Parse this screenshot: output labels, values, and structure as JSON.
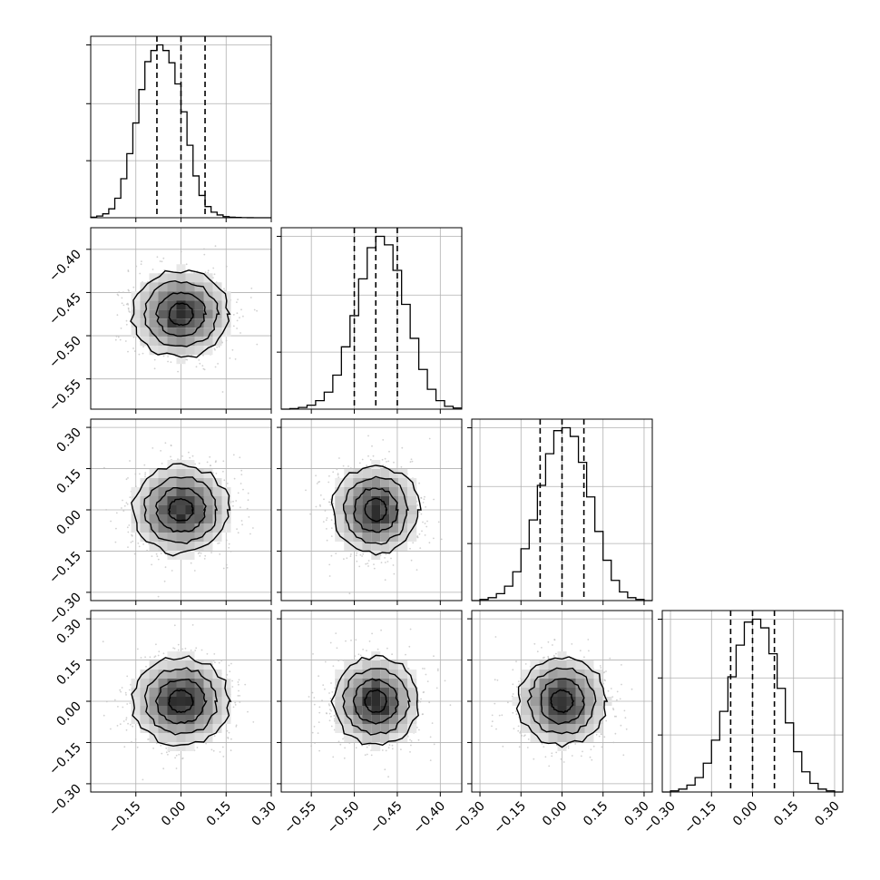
{
  "chart_data": {
    "type": "corner",
    "parameters": 4,
    "title": "",
    "panels": [
      {
        "id": "hist-0",
        "type": "histogram",
        "param": 0,
        "xlim": [
          -0.3,
          0.3
        ],
        "quantiles": [
          -0.08,
          0.0,
          0.08
        ],
        "bins": [
          -0.3,
          -0.28,
          -0.26,
          -0.24,
          -0.22,
          -0.2,
          -0.18,
          -0.16,
          -0.14,
          -0.12,
          -0.1,
          -0.08,
          -0.06,
          -0.04,
          -0.02,
          0.0,
          0.02,
          0.04,
          0.06,
          0.08,
          0.1,
          0.12,
          0.14,
          0.16,
          0.18,
          0.2,
          0.22,
          0.24,
          0.26,
          0.28,
          0.3
        ],
        "counts": [
          1,
          3,
          7,
          16,
          35,
          70,
          115,
          170,
          230,
          280,
          300,
          310,
          300,
          278,
          240,
          190,
          130,
          75,
          40,
          20,
          10,
          5,
          2,
          1,
          0.5,
          0.2,
          0.1,
          0,
          0,
          0
        ]
      },
      {
        "id": "hist-1",
        "type": "histogram",
        "param": 1,
        "xlim": [
          -0.585,
          -0.375
        ],
        "quantiles": [
          -0.5,
          -0.475,
          -0.45
        ],
        "bins": [
          -0.585,
          -0.575,
          -0.565,
          -0.555,
          -0.545,
          -0.535,
          -0.525,
          -0.515,
          -0.505,
          -0.495,
          -0.485,
          -0.475,
          -0.465,
          -0.455,
          -0.445,
          -0.435,
          -0.425,
          -0.415,
          -0.405,
          -0.395,
          -0.385,
          -0.375
        ],
        "counts": [
          0,
          1,
          3,
          7,
          15,
          30,
          60,
          110,
          165,
          230,
          285,
          305,
          290,
          245,
          185,
          125,
          70,
          35,
          15,
          5,
          2
        ]
      },
      {
        "id": "hist-2",
        "type": "histogram",
        "param": 2,
        "xlim": [
          -0.33,
          0.33
        ],
        "quantiles": [
          -0.08,
          0.0,
          0.08
        ],
        "bins": [
          -0.33,
          -0.3,
          -0.27,
          -0.24,
          -0.21,
          -0.18,
          -0.15,
          -0.12,
          -0.09,
          -0.06,
          -0.03,
          0.0,
          0.03,
          0.06,
          0.09,
          0.12,
          0.15,
          0.18,
          0.21,
          0.24,
          0.27,
          0.3,
          0.33
        ],
        "counts": [
          0,
          2,
          5,
          12,
          25,
          50,
          90,
          140,
          200,
          255,
          295,
          300,
          285,
          240,
          180,
          120,
          70,
          35,
          15,
          5,
          2,
          0
        ]
      },
      {
        "id": "hist-3",
        "type": "histogram",
        "param": 3,
        "xlim": [
          -0.33,
          0.33
        ],
        "quantiles": [
          -0.08,
          0.0,
          0.08
        ],
        "bins": [
          -0.33,
          -0.3,
          -0.27,
          -0.24,
          -0.21,
          -0.18,
          -0.15,
          -0.12,
          -0.09,
          -0.06,
          -0.03,
          0.0,
          0.03,
          0.06,
          0.09,
          0.12,
          0.15,
          0.18,
          0.21,
          0.24,
          0.27,
          0.3,
          0.33
        ],
        "counts": [
          0,
          2,
          5,
          12,
          25,
          50,
          90,
          140,
          200,
          255,
          295,
          300,
          285,
          240,
          180,
          120,
          70,
          35,
          15,
          5,
          2,
          0
        ]
      },
      {
        "id": "joint-1-0",
        "type": "contour",
        "x": 0,
        "y": 1,
        "xlim": [
          -0.3,
          0.3
        ],
        "ylim": [
          -0.585,
          -0.375
        ],
        "center": [
          0.0,
          -0.475
        ],
        "sigma": [
          0.08,
          0.025
        ]
      },
      {
        "id": "joint-2-0",
        "type": "contour",
        "x": 0,
        "y": 2,
        "xlim": [
          -0.3,
          0.3
        ],
        "ylim": [
          -0.33,
          0.33
        ],
        "center": [
          0.0,
          0.0
        ],
        "sigma": [
          0.08,
          0.08
        ]
      },
      {
        "id": "joint-2-1",
        "type": "contour",
        "x": 1,
        "y": 2,
        "xlim": [
          -0.585,
          -0.375
        ],
        "ylim": [
          -0.33,
          0.33
        ],
        "center": [
          -0.475,
          0.0
        ],
        "sigma": [
          0.025,
          0.08
        ]
      },
      {
        "id": "joint-3-0",
        "type": "contour",
        "x": 0,
        "y": 3,
        "xlim": [
          -0.3,
          0.3
        ],
        "ylim": [
          -0.33,
          0.33
        ],
        "center": [
          0.0,
          0.0
        ],
        "sigma": [
          0.08,
          0.08
        ]
      },
      {
        "id": "joint-3-1",
        "type": "contour",
        "x": 1,
        "y": 3,
        "xlim": [
          -0.585,
          -0.375
        ],
        "ylim": [
          -0.33,
          0.33
        ],
        "center": [
          -0.475,
          0.0
        ],
        "sigma": [
          0.025,
          0.08
        ]
      },
      {
        "id": "joint-3-2",
        "type": "contour",
        "x": 2,
        "y": 3,
        "xlim": [
          -0.33,
          0.33
        ],
        "ylim": [
          -0.33,
          0.33
        ],
        "center": [
          0.0,
          0.0
        ],
        "sigma": [
          0.08,
          0.08
        ]
      }
    ],
    "axis_ticks": {
      "param0": [
        -0.15,
        0.0,
        0.15,
        0.3
      ],
      "param1": [
        -0.55,
        -0.5,
        -0.45,
        -0.4
      ],
      "param2": [
        -0.3,
        -0.15,
        0.0,
        0.15,
        0.3
      ],
      "param3": [
        -0.3,
        -0.15,
        0.0,
        0.15,
        0.3
      ]
    },
    "tick_labels": {
      "bottom_col0": [
        "−0.15",
        "0.00",
        "0.15",
        "0.30"
      ],
      "bottom_col1": [
        "−0.55",
        "−0.50",
        "−0.45",
        "−0.40"
      ],
      "bottom_col2": [
        "−0.30",
        "−0.15",
        "0.00",
        "0.15",
        "0.30"
      ],
      "bottom_col3": [
        "−0.30",
        "−0.15",
        "0.00",
        "0.15",
        "0.30"
      ],
      "left_row1": [
        "−0.40",
        "−0.45",
        "−0.50",
        "−0.55"
      ],
      "left_row2": [
        "0.30",
        "0.15",
        "0.00",
        "−0.15",
        "−0.30"
      ],
      "left_row3": [
        "0.30",
        "0.15",
        "0.00",
        "−0.15",
        "−0.30"
      ]
    },
    "grid": true,
    "colors": {
      "line": "#000000",
      "scatter": "#bdbdbd",
      "grid": "#b0b0b0"
    }
  }
}
